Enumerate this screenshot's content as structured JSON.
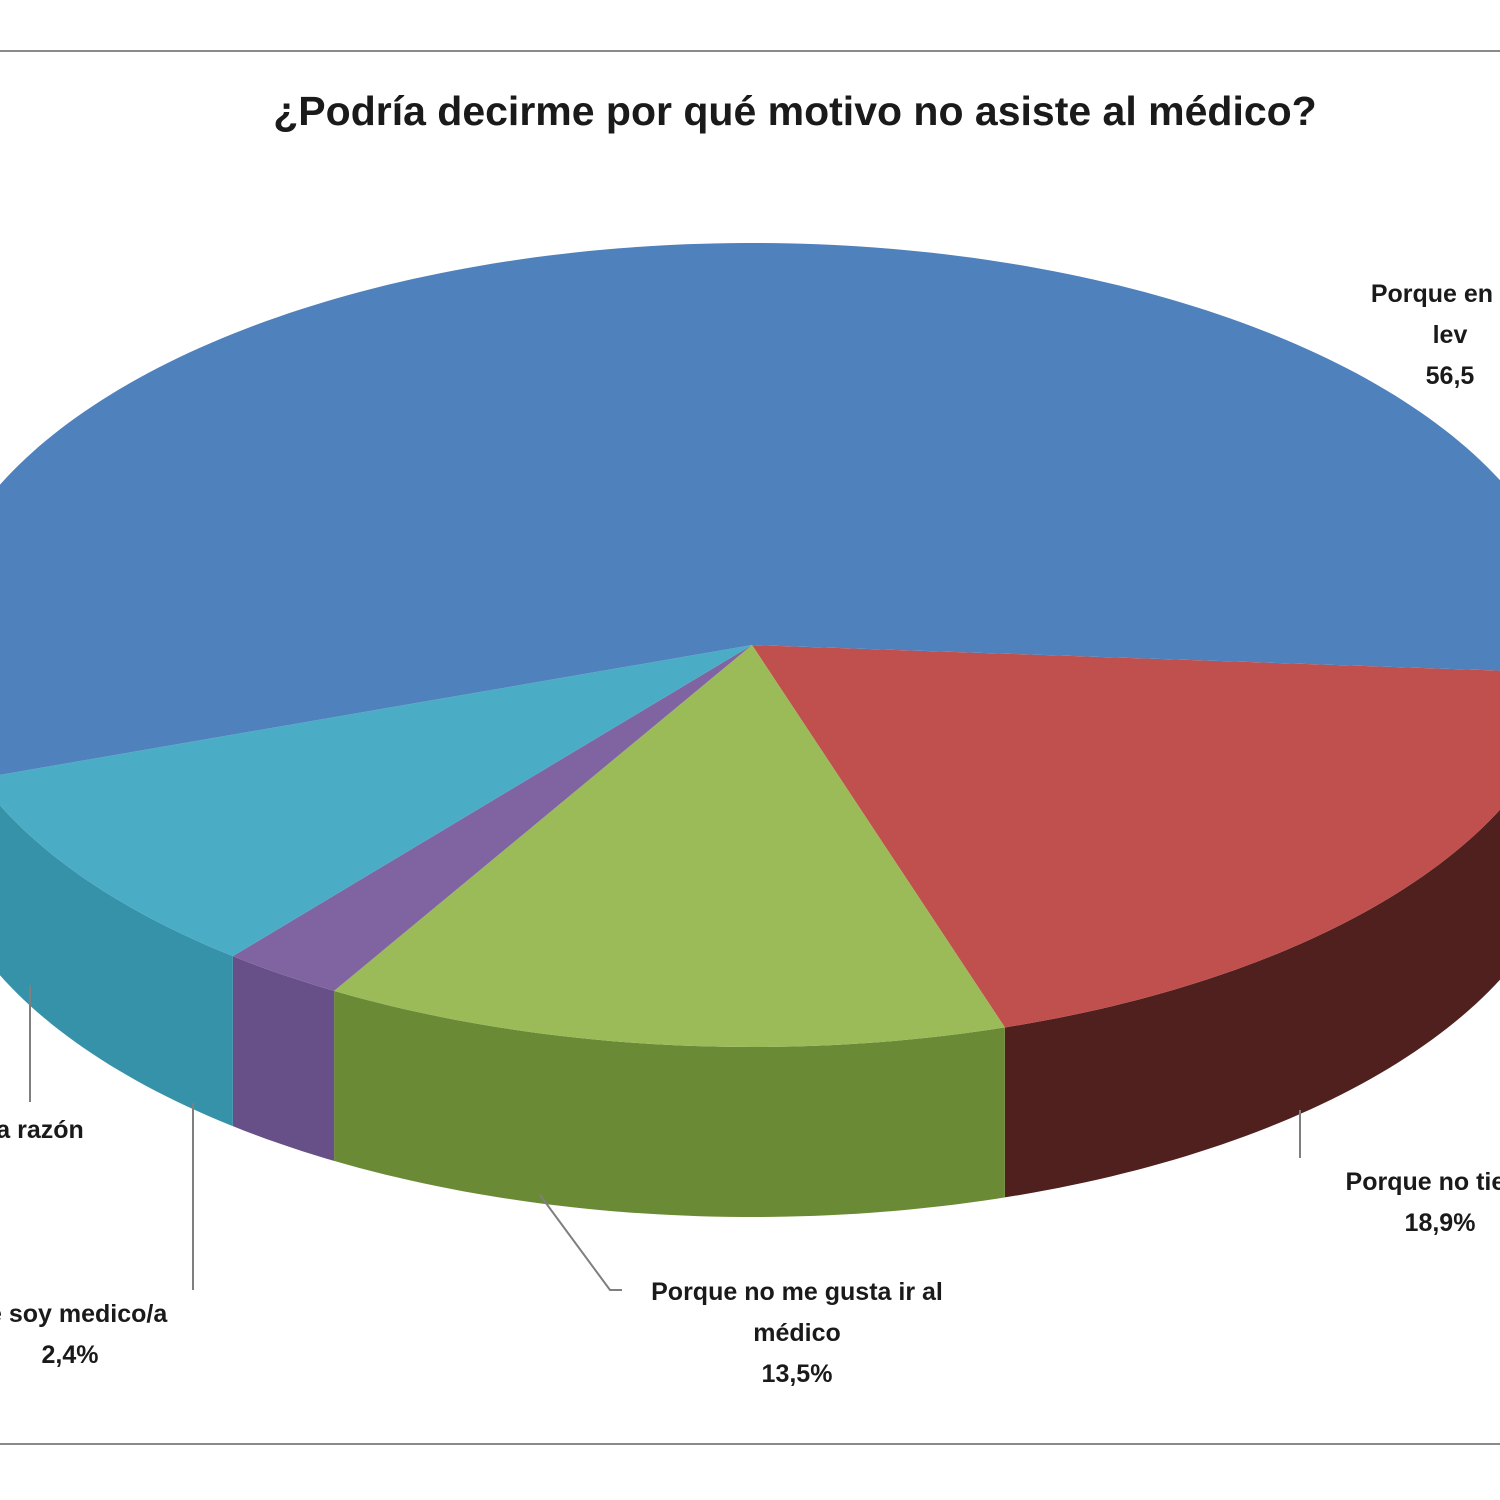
{
  "chart_data": {
    "type": "pie",
    "style": "3d",
    "title": "¿Podría decirme por qué motivo no asiste al médico?",
    "slices": [
      {
        "label_lines": [
          "Porque no tiene"
        ],
        "value_label": "18,9%",
        "value": 18.9,
        "color": "#c0504d",
        "side_color": "#50201f"
      },
      {
        "label_lines": [
          "Porque no me gusta ir al",
          "médico"
        ],
        "value_label": "13,5%",
        "value": 13.5,
        "color": "#9bbb59",
        "side_color": "#6b8a36"
      },
      {
        "label_lines": [
          "ue soy medico/a"
        ],
        "value_label": "2,4%",
        "value": 2.4,
        "color": "#8064a2",
        "side_color": "#674f88"
      },
      {
        "label_lines": [
          "a razón"
        ],
        "value_label": "",
        "value": 8.7,
        "color": "#4bacc6",
        "side_color": "#3592a8"
      },
      {
        "label_lines": [
          "Porque en ge",
          "lev"
        ],
        "value_label": "56,5",
        "value": 56.5,
        "color": "#4f81bd",
        "side_color": "#3a6496"
      }
    ]
  }
}
